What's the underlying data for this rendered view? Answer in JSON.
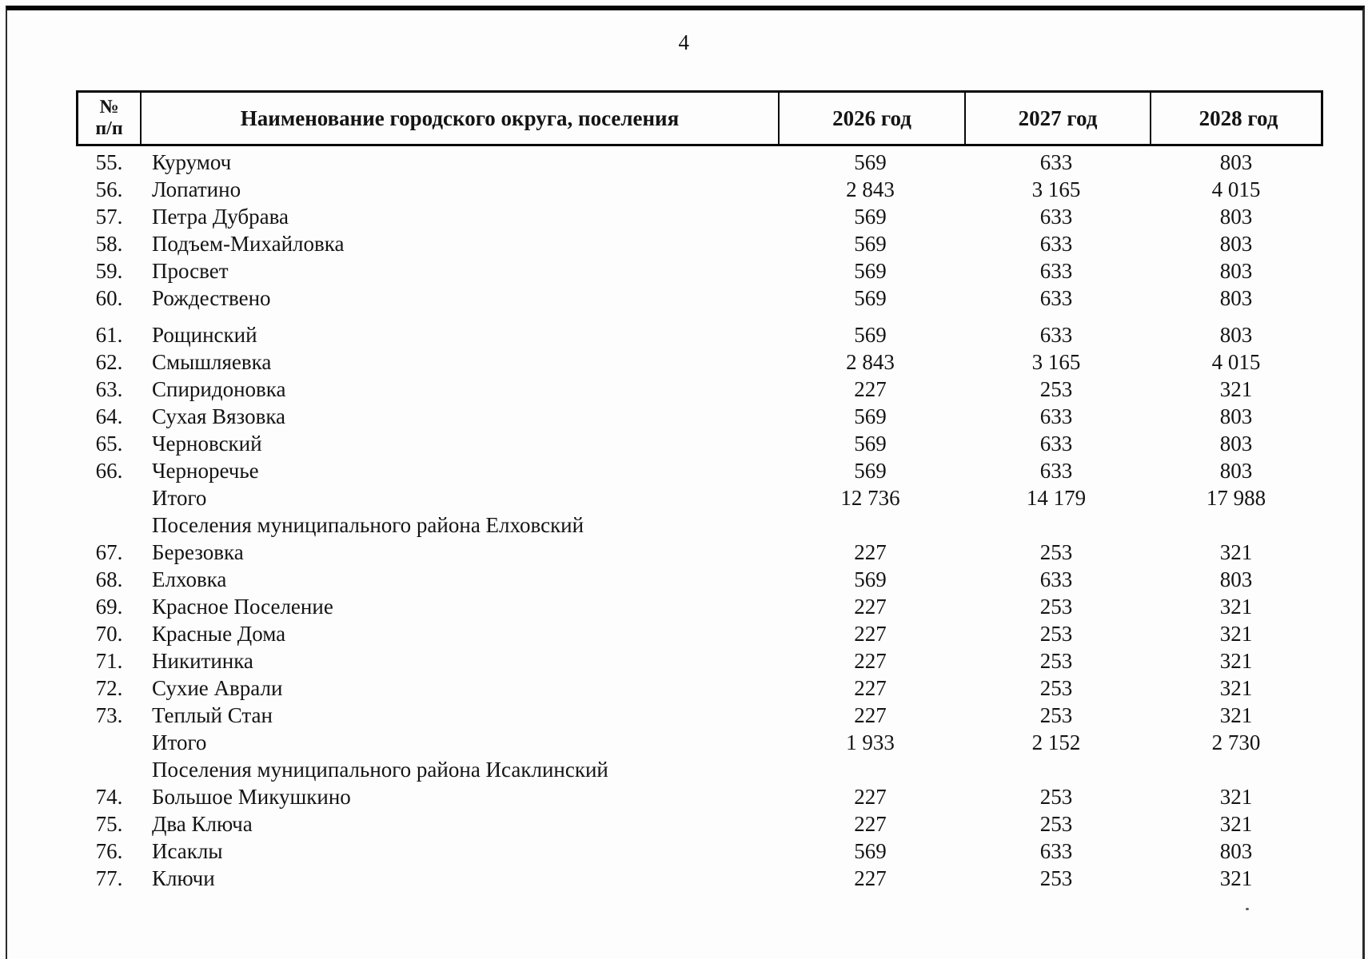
{
  "page": {
    "number": "4"
  },
  "table": {
    "columns": [
      {
        "key": "num",
        "label_line1": "№",
        "label_line2": "п/п"
      },
      {
        "key": "name",
        "label": "Наименование городского округа, поселения"
      },
      {
        "key": "y2026",
        "label": "2026 год"
      },
      {
        "key": "y2027",
        "label": "2027 год"
      },
      {
        "key": "y2028",
        "label": "2028 год"
      }
    ],
    "rows": [
      {
        "type": "data",
        "num": "55.",
        "name": "Курумоч",
        "y2026": "569",
        "y2027": "633",
        "y2028": "803"
      },
      {
        "type": "data",
        "num": "56.",
        "name": "Лопатино",
        "y2026": "2 843",
        "y2027": "3 165",
        "y2028": "4 015"
      },
      {
        "type": "data",
        "num": "57.",
        "name": "Петра Дубрава",
        "y2026": "569",
        "y2027": "633",
        "y2028": "803"
      },
      {
        "type": "data",
        "num": "58.",
        "name": "Подъем-Михайловка",
        "y2026": "569",
        "y2027": "633",
        "y2028": "803"
      },
      {
        "type": "data",
        "num": "59.",
        "name": "Просвет",
        "y2026": "569",
        "y2027": "633",
        "y2028": "803"
      },
      {
        "type": "data",
        "num": "60.",
        "name": "Рождествено",
        "y2026": "569",
        "y2027": "633",
        "y2028": "803"
      },
      {
        "type": "data",
        "gap_before": true,
        "num": "61.",
        "name": "Рощинский",
        "y2026": "569",
        "y2027": "633",
        "y2028": "803"
      },
      {
        "type": "data",
        "num": "62.",
        "name": "Смышляевка",
        "y2026": "2 843",
        "y2027": "3 165",
        "y2028": "4 015"
      },
      {
        "type": "data",
        "num": "63.",
        "name": "Спиридоновка",
        "y2026": "227",
        "y2027": "253",
        "y2028": "321"
      },
      {
        "type": "data",
        "num": "64.",
        "name": "Сухая Вязовка",
        "y2026": "569",
        "y2027": "633",
        "y2028": "803"
      },
      {
        "type": "data",
        "num": "65.",
        "name": "Черновский",
        "y2026": "569",
        "y2027": "633",
        "y2028": "803"
      },
      {
        "type": "data",
        "num": "66.",
        "name": "Черноречье",
        "y2026": "569",
        "y2027": "633",
        "y2028": "803"
      },
      {
        "type": "total",
        "num": "",
        "name": "Итого",
        "y2026": "12 736",
        "y2027": "14 179",
        "y2028": "17 988"
      },
      {
        "type": "section",
        "num": "",
        "name": "Поселения муниципального района Елховский",
        "y2026": "",
        "y2027": "",
        "y2028": ""
      },
      {
        "type": "data",
        "num": "67.",
        "name": "Березовка",
        "y2026": "227",
        "y2027": "253",
        "y2028": "321"
      },
      {
        "type": "data",
        "num": "68.",
        "name": "Елховка",
        "y2026": "569",
        "y2027": "633",
        "y2028": "803"
      },
      {
        "type": "data",
        "num": "69.",
        "name": "Красное Поселение",
        "y2026": "227",
        "y2027": "253",
        "y2028": "321"
      },
      {
        "type": "data",
        "num": "70.",
        "name": "Красные Дома",
        "y2026": "227",
        "y2027": "253",
        "y2028": "321"
      },
      {
        "type": "data",
        "num": "71.",
        "name": "Никитинка",
        "y2026": "227",
        "y2027": "253",
        "y2028": "321"
      },
      {
        "type": "data",
        "num": "72.",
        "name": "Сухие Аврали",
        "y2026": "227",
        "y2027": "253",
        "y2028": "321"
      },
      {
        "type": "data",
        "num": "73.",
        "name": "Теплый Стан",
        "y2026": "227",
        "y2027": "253",
        "y2028": "321"
      },
      {
        "type": "total",
        "num": "",
        "name": "Итого",
        "y2026": "1 933",
        "y2027": "2 152",
        "y2028": "2 730"
      },
      {
        "type": "section",
        "num": "",
        "name": "Поселения муниципального района Исаклинский",
        "y2026": "",
        "y2027": "",
        "y2028": ""
      },
      {
        "type": "data",
        "num": "74.",
        "name": "Большое Микушкино",
        "y2026": "227",
        "y2027": "253",
        "y2028": "321"
      },
      {
        "type": "data",
        "num": "75.",
        "name": "Два Ключа",
        "y2026": "227",
        "y2027": "253",
        "y2028": "321"
      },
      {
        "type": "data",
        "num": "76.",
        "name": "Исаклы",
        "y2026": "569",
        "y2027": "633",
        "y2028": "803"
      },
      {
        "type": "data",
        "num": "77.",
        "name": "Ключи",
        "y2026": "227",
        "y2027": "253",
        "y2028": "321"
      }
    ]
  }
}
